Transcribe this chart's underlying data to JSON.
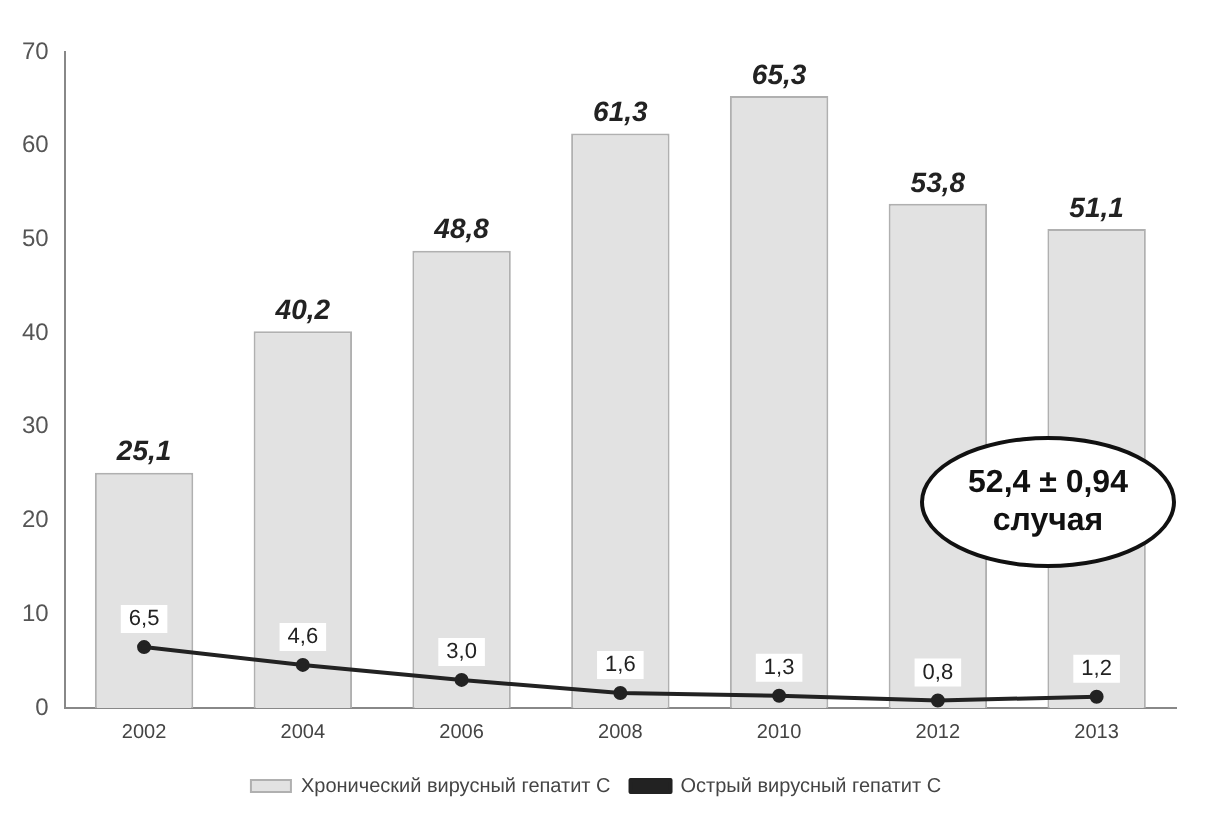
{
  "chart_data": {
    "type": "bar",
    "categories": [
      "2002",
      "2004",
      "2006",
      "2008",
      "2010",
      "2012",
      "2013"
    ],
    "series": [
      {
        "name": "Хронический вирусный гепатит С",
        "color": "#e2e2e2",
        "values": [
          25.1,
          40.2,
          48.8,
          61.3,
          65.3,
          53.8,
          51.1
        ],
        "value_labels": [
          "25,1",
          "40,2",
          "48,8",
          "61,3",
          "65,3",
          "53,8",
          "51,1"
        ]
      },
      {
        "name": "Острый вирусный гепатит С",
        "type": "line",
        "color": "#222222",
        "values": [
          6.5,
          4.6,
          3.0,
          1.6,
          1.3,
          0.8,
          1.2
        ],
        "value_labels": [
          "6,5",
          "4,6",
          "3,0",
          "1,6",
          "1,3",
          "0,8",
          "1,2"
        ]
      }
    ],
    "ylim": [
      0,
      70
    ],
    "yticks": [
      0,
      10,
      20,
      30,
      40,
      50,
      60,
      70
    ],
    "grid": false,
    "legend": "bottom",
    "marker": "circle",
    "line_style": "solid",
    "annotations": [
      "52,4 ± 0,94 случая"
    ]
  }
}
